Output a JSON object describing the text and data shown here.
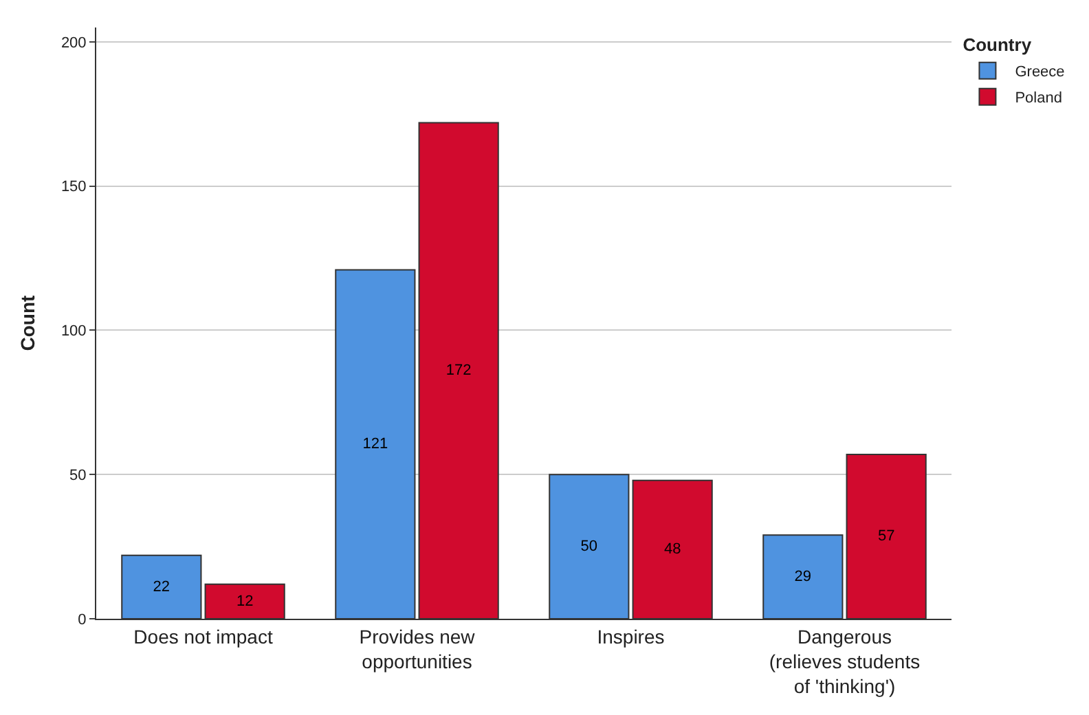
{
  "chart_data": {
    "type": "bar",
    "ylabel": "Count",
    "legend_title": "Country",
    "categories": [
      "Does not impact",
      "Provides new\nopportunities",
      "Inspires",
      "Dangerous\n(relieves students\nof 'thinking')"
    ],
    "series": [
      {
        "name": "Greece",
        "color": "#4f93e0",
        "values": [
          22,
          121,
          50,
          29
        ]
      },
      {
        "name": "Poland",
        "color": "#d10a2e",
        "values": [
          12,
          172,
          48,
          57
        ]
      }
    ],
    "ylim": [
      0,
      205
    ],
    "yticks": [
      0,
      50,
      100,
      150,
      200
    ],
    "grid": "y",
    "legend": "top right",
    "data_labels": true
  }
}
